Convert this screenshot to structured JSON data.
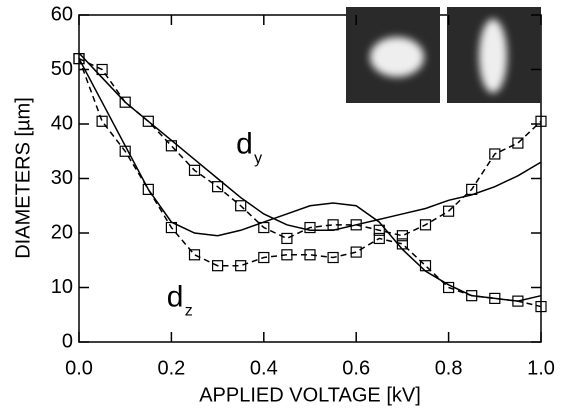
{
  "chart_data": {
    "type": "line",
    "xlabel": "APPLIED VOLTAGE [kV]",
    "ylabel": "DIAMETERS [µm]",
    "x": [
      0,
      0.05,
      0.1,
      0.15,
      0.2,
      0.25,
      0.3,
      0.35,
      0.4,
      0.45,
      0.5,
      0.55,
      0.6,
      0.65,
      0.7,
      0.75,
      0.8,
      0.85,
      0.9,
      0.95,
      1.0
    ],
    "series": [
      {
        "color": "#000000",
        "marker": "none",
        "dashed": false,
        "values": [
          53,
          48.5,
          44,
          40.5,
          37,
          33.5,
          30,
          26.5,
          23.5,
          21.5,
          20.5,
          20.5,
          21.5,
          22.5,
          23.5,
          24.5,
          26,
          27,
          28.5,
          30.5,
          33
        ]
      },
      {
        "color": "#000000",
        "marker": "none",
        "dashed": false,
        "values": [
          52,
          44,
          36,
          28,
          22,
          20,
          19.5,
          20.5,
          22,
          23.5,
          25,
          25.5,
          25,
          22,
          17,
          13,
          10.5,
          8.5,
          8,
          7.5,
          8.5
        ]
      },
      {
        "color": "#000000",
        "marker": "square",
        "dashed": true,
        "values": [
          52,
          50,
          44,
          40.5,
          36,
          31.5,
          28.5,
          25,
          21,
          19,
          21,
          21.5,
          21.5,
          20.5,
          19.5,
          21.5,
          24,
          28,
          34.5,
          36.5,
          40.5
        ]
      },
      {
        "color": "#000000",
        "marker": "square",
        "dashed": true,
        "values": [
          52,
          40.5,
          35,
          28,
          21,
          16,
          14,
          14,
          15.5,
          16,
          16,
          15.5,
          16.5,
          19,
          18,
          14,
          10,
          8.5,
          8,
          7.5,
          6.5
        ]
      }
    ],
    "annotations": [
      {
        "text": "d",
        "sub": "y",
        "x": 0.34,
        "y": 36
      },
      {
        "text": "d",
        "sub": "z",
        "x": 0.19,
        "y": 8
      }
    ],
    "xlim": [
      0,
      1.0
    ],
    "xticks": [
      {
        "value": 0,
        "label": "0.0"
      },
      0.2,
      0.4,
      0.6,
      0.8,
      {
        "value": 1.0,
        "label": "1.0"
      }
    ],
    "ylim": [
      0,
      60
    ],
    "yticks": [
      0,
      10,
      20,
      30,
      40,
      50,
      60
    ],
    "grid": false
  }
}
